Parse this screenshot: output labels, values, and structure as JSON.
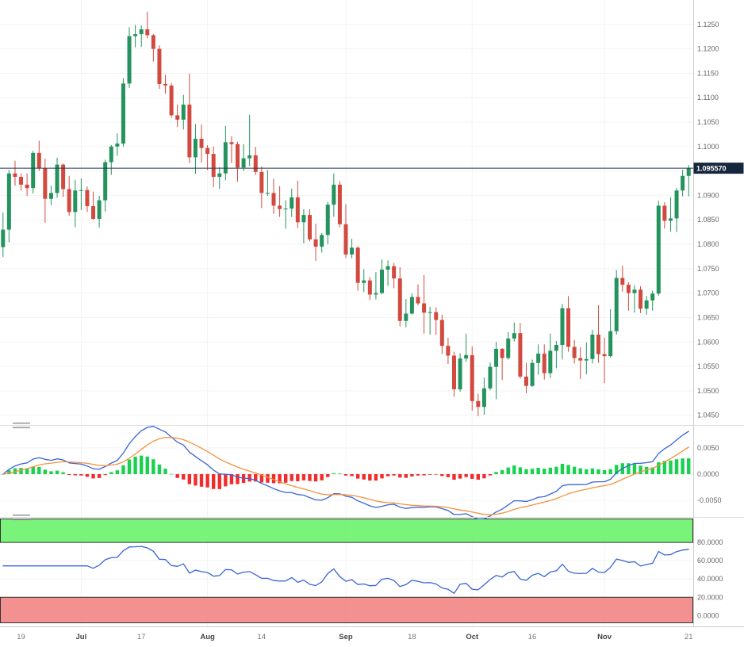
{
  "colors": {
    "background": "#ffffff",
    "axis_text": "#666666",
    "time_text": "#777777",
    "month_text": "#444444",
    "axis_line": "#cccccc",
    "grid": "#f3f3f3",
    "zero_grid": "#e9e9e9",
    "candle_up": "#24935d",
    "candle_down": "#d24a3f",
    "last_price_line": "#22384f",
    "badge_bg": "#16263c",
    "badge_text": "#ffffff",
    "macd_line": "#3a64d8",
    "signal_line": "#f5913d",
    "hist_up": "#19d14f",
    "hist_down": "#f22c2c",
    "osc_line": "#3a64d8",
    "overbought_fill": "#63f163",
    "oversold_fill": "#f17c7c",
    "zone_border": "#333333",
    "separator": "#dddddd",
    "handle": "#999999"
  },
  "chart_data": {
    "type": "candlestick",
    "title": "",
    "price_axis": {
      "min": 1.043,
      "max": 1.13,
      "tick_step": 0.005,
      "ticks": [
        "1.0450",
        "1.0500",
        "1.0550",
        "1.0600",
        "1.0650",
        "1.0700",
        "1.0750",
        "1.0800",
        "1.0850",
        "1.0900",
        "1.0950",
        "1.1000",
        "1.1050",
        "1.1100",
        "1.1150",
        "1.1200",
        "1.1250"
      ]
    },
    "last_price": {
      "value": 1.09557,
      "label": "1.095570"
    },
    "x_axis": {
      "ticks": [
        {
          "index": 3,
          "label": "19",
          "month": false
        },
        {
          "index": 13,
          "label": "Jul",
          "month": true
        },
        {
          "index": 23,
          "label": "17",
          "month": false
        },
        {
          "index": 34,
          "label": "Aug",
          "month": true
        },
        {
          "index": 43,
          "label": "14",
          "month": false
        },
        {
          "index": 57,
          "label": "Sep",
          "month": true
        },
        {
          "index": 68,
          "label": "18",
          "month": false
        },
        {
          "index": 78,
          "label": "Oct",
          "month": true
        },
        {
          "index": 88,
          "label": "16",
          "month": false
        },
        {
          "index": 100,
          "label": "Nov",
          "month": true
        },
        {
          "index": 114,
          "label": "21",
          "month": false
        }
      ]
    },
    "candles": [
      [
        1.0794,
        1.0865,
        1.0774,
        1.083
      ],
      [
        1.083,
        1.0952,
        1.0804,
        1.0945
      ],
      [
        1.0945,
        1.0971,
        1.092,
        1.0938
      ],
      [
        1.0938,
        1.0945,
        1.091,
        1.0922
      ],
      [
        1.0922,
        1.0945,
        1.0899,
        1.0915
      ],
      [
        1.0915,
        1.0991,
        1.0904,
        1.0987
      ],
      [
        1.0987,
        1.1012,
        1.095,
        1.0955
      ],
      [
        1.0955,
        1.0975,
        1.0844,
        1.0893
      ],
      [
        1.0893,
        1.092,
        1.088,
        1.0905
      ],
      [
        1.0905,
        1.0977,
        1.0895,
        1.0963
      ],
      [
        1.0963,
        1.0965,
        1.0897,
        1.0913
      ],
      [
        1.0913,
        1.094,
        1.0858,
        1.0866
      ],
      [
        1.0866,
        1.0932,
        1.0835,
        1.091
      ],
      [
        1.091,
        1.0935,
        1.087,
        1.0911
      ],
      [
        1.0911,
        1.0918,
        1.0866,
        1.0878
      ],
      [
        1.0878,
        1.0908,
        1.085,
        1.0852
      ],
      [
        1.0852,
        1.0899,
        1.0834,
        1.089
      ],
      [
        1.089,
        1.0973,
        1.0867,
        1.0968
      ],
      [
        1.0968,
        1.1003,
        1.0942,
        1.1
      ],
      [
        1.1,
        1.1027,
        1.0981,
        1.1006
      ],
      [
        1.1006,
        1.114,
        1.1,
        1.1129
      ],
      [
        1.1129,
        1.1244,
        1.112,
        1.1226
      ],
      [
        1.1226,
        1.1249,
        1.1203,
        1.123
      ],
      [
        1.123,
        1.1248,
        1.1204,
        1.124
      ],
      [
        1.124,
        1.1276,
        1.1222,
        1.1228
      ],
      [
        1.1228,
        1.123,
        1.1174,
        1.12
      ],
      [
        1.12,
        1.1207,
        1.1118,
        1.1128
      ],
      [
        1.1128,
        1.1147,
        1.1108,
        1.1125
      ],
      [
        1.1125,
        1.113,
        1.1059,
        1.1064
      ],
      [
        1.1064,
        1.1086,
        1.104,
        1.1055
      ],
      [
        1.1055,
        1.1106,
        1.1035,
        1.1086
      ],
      [
        1.1086,
        1.1149,
        1.0966,
        1.0978
      ],
      [
        1.0978,
        1.1046,
        1.0944,
        1.1016
      ],
      [
        1.1016,
        1.1045,
        1.0967,
        1.0997
      ],
      [
        1.0997,
        1.1003,
        1.0952,
        1.0985
      ],
      [
        1.0985,
        1.1,
        1.0917,
        1.0938
      ],
      [
        1.0938,
        1.0958,
        1.0913,
        1.0945
      ],
      [
        1.0945,
        1.1042,
        1.0931,
        1.1009
      ],
      [
        1.1009,
        1.1021,
        1.0966,
        1.1005
      ],
      [
        1.1005,
        1.101,
        1.0928,
        1.0957
      ],
      [
        1.0957,
        1.1005,
        1.095,
        1.0976
      ],
      [
        1.0976,
        1.1065,
        1.096,
        1.0982
      ],
      [
        1.0982,
        1.0999,
        1.0942,
        1.0948
      ],
      [
        1.0948,
        1.0959,
        1.0874,
        1.0905
      ],
      [
        1.0905,
        1.0952,
        1.0899,
        1.0905
      ],
      [
        1.0905,
        1.0934,
        1.0862,
        1.0879
      ],
      [
        1.0879,
        1.0919,
        1.0856,
        1.0872
      ],
      [
        1.0872,
        1.089,
        1.0832,
        1.0873
      ],
      [
        1.0873,
        1.0914,
        1.0856,
        1.0896
      ],
      [
        1.0896,
        1.093,
        1.0833,
        1.0845
      ],
      [
        1.0845,
        1.0872,
        1.0802,
        1.086
      ],
      [
        1.086,
        1.0871,
        1.0806,
        1.081
      ],
      [
        1.081,
        1.0842,
        1.0766,
        1.0795
      ],
      [
        1.0795,
        1.0823,
        1.0783,
        1.0819
      ],
      [
        1.0819,
        1.0887,
        1.08,
        1.0881
      ],
      [
        1.0881,
        1.0945,
        1.0856,
        1.0922
      ],
      [
        1.0922,
        1.0929,
        1.0835,
        1.0841
      ],
      [
        1.0841,
        1.0882,
        1.0772,
        1.0779
      ],
      [
        1.0779,
        1.0811,
        1.0771,
        1.0793
      ],
      [
        1.0793,
        1.0796,
        1.0705,
        1.0721
      ],
      [
        1.0721,
        1.0749,
        1.0702,
        1.0726
      ],
      [
        1.0726,
        1.0733,
        1.0686,
        1.0697
      ],
      [
        1.0697,
        1.0743,
        1.0687,
        1.07
      ],
      [
        1.07,
        1.0769,
        1.0698,
        1.0748
      ],
      [
        1.0748,
        1.0767,
        1.0715,
        1.0755
      ],
      [
        1.0755,
        1.0762,
        1.071,
        1.073
      ],
      [
        1.073,
        1.0753,
        1.0632,
        1.0643
      ],
      [
        1.0643,
        1.0688,
        1.063,
        1.0658
      ],
      [
        1.0658,
        1.0699,
        1.0656,
        1.0692
      ],
      [
        1.0692,
        1.0718,
        1.0675,
        1.0679
      ],
      [
        1.0679,
        1.0737,
        1.0617,
        1.066
      ],
      [
        1.066,
        1.0672,
        1.0615,
        1.0661
      ],
      [
        1.0661,
        1.0671,
        1.0615,
        1.0645
      ],
      [
        1.0645,
        1.0656,
        1.0575,
        1.0592
      ],
      [
        1.0592,
        1.0609,
        1.0555,
        1.0572
      ],
      [
        1.0572,
        1.058,
        1.0488,
        1.0503
      ],
      [
        1.0503,
        1.0577,
        1.0498,
        1.0566
      ],
      [
        1.0566,
        1.0617,
        1.0559,
        1.0573
      ],
      [
        1.0573,
        1.0591,
        1.0459,
        1.0479
      ],
      [
        1.0479,
        1.0494,
        1.0448,
        1.0467
      ],
      [
        1.0467,
        1.0527,
        1.0451,
        1.0505
      ],
      [
        1.0505,
        1.0558,
        1.0501,
        1.0549
      ],
      [
        1.0549,
        1.06,
        1.0483,
        1.0586
      ],
      [
        1.0586,
        1.0587,
        1.0522,
        1.0567
      ],
      [
        1.0567,
        1.062,
        1.0564,
        1.0607
      ],
      [
        1.0607,
        1.064,
        1.0601,
        1.0618
      ],
      [
        1.0618,
        1.0639,
        1.0525,
        1.0529
      ],
      [
        1.0529,
        1.0557,
        1.0495,
        1.051
      ],
      [
        1.051,
        1.0564,
        1.0508,
        1.0557
      ],
      [
        1.0557,
        1.0595,
        1.0533,
        1.0576
      ],
      [
        1.0576,
        1.0595,
        1.0523,
        1.0536
      ],
      [
        1.0536,
        1.0617,
        1.0526,
        1.0582
      ],
      [
        1.0582,
        1.0602,
        1.0546,
        1.0594
      ],
      [
        1.0594,
        1.0678,
        1.0564,
        1.0669
      ],
      [
        1.0669,
        1.0694,
        1.058,
        1.059
      ],
      [
        1.059,
        1.0604,
        1.0556,
        1.0567
      ],
      [
        1.0567,
        1.0589,
        1.0524,
        1.0562
      ],
      [
        1.0562,
        1.0599,
        1.0534,
        1.0565
      ],
      [
        1.0565,
        1.0625,
        1.0556,
        1.0615
      ],
      [
        1.0615,
        1.0675,
        1.0557,
        1.0575
      ],
      [
        1.0575,
        1.0609,
        1.0516,
        1.0571
      ],
      [
        1.0571,
        1.0667,
        1.0568,
        1.0622
      ],
      [
        1.0622,
        1.0747,
        1.0615,
        1.0731
      ],
      [
        1.0731,
        1.0756,
        1.0703,
        1.0717
      ],
      [
        1.0717,
        1.0722,
        1.0664,
        1.07
      ],
      [
        1.07,
        1.0716,
        1.066,
        1.0707
      ],
      [
        1.0707,
        1.0714,
        1.0659,
        1.0668
      ],
      [
        1.0668,
        1.0694,
        1.0656,
        1.0685
      ],
      [
        1.0685,
        1.0705,
        1.0664,
        1.0699
      ],
      [
        1.0699,
        1.0889,
        1.0695,
        1.0879
      ],
      [
        1.0879,
        1.0886,
        1.0832,
        1.0848
      ],
      [
        1.0848,
        1.0896,
        1.0826,
        1.0853
      ],
      [
        1.0853,
        1.0915,
        1.0825,
        1.091
      ],
      [
        1.091,
        1.0952,
        1.0898,
        1.094
      ],
      [
        1.094,
        1.0962,
        1.0898,
        1.0956
      ]
    ],
    "macd": {
      "fast_period": 12,
      "slow_period": 26,
      "signal_period": 9,
      "ylim": [
        -0.008,
        0.0092
      ],
      "ticks": [
        {
          "label": "0.0050",
          "value": 0.005
        },
        {
          "label": "0.0000",
          "value": 0
        },
        {
          "label": "-0.0050",
          "value": -0.005
        }
      ]
    },
    "oscillator": {
      "kind": "rsi",
      "period": 14,
      "overbought": 80,
      "oversold": 20,
      "ylim": [
        -11,
        107
      ],
      "ticks": [
        {
          "label": "80.0000",
          "value": 80
        },
        {
          "label": "60.0000",
          "value": 60
        },
        {
          "label": "40.0000",
          "value": 40
        },
        {
          "label": "20.0000",
          "value": 20
        },
        {
          "label": "0.0000",
          "value": 0
        }
      ]
    }
  }
}
